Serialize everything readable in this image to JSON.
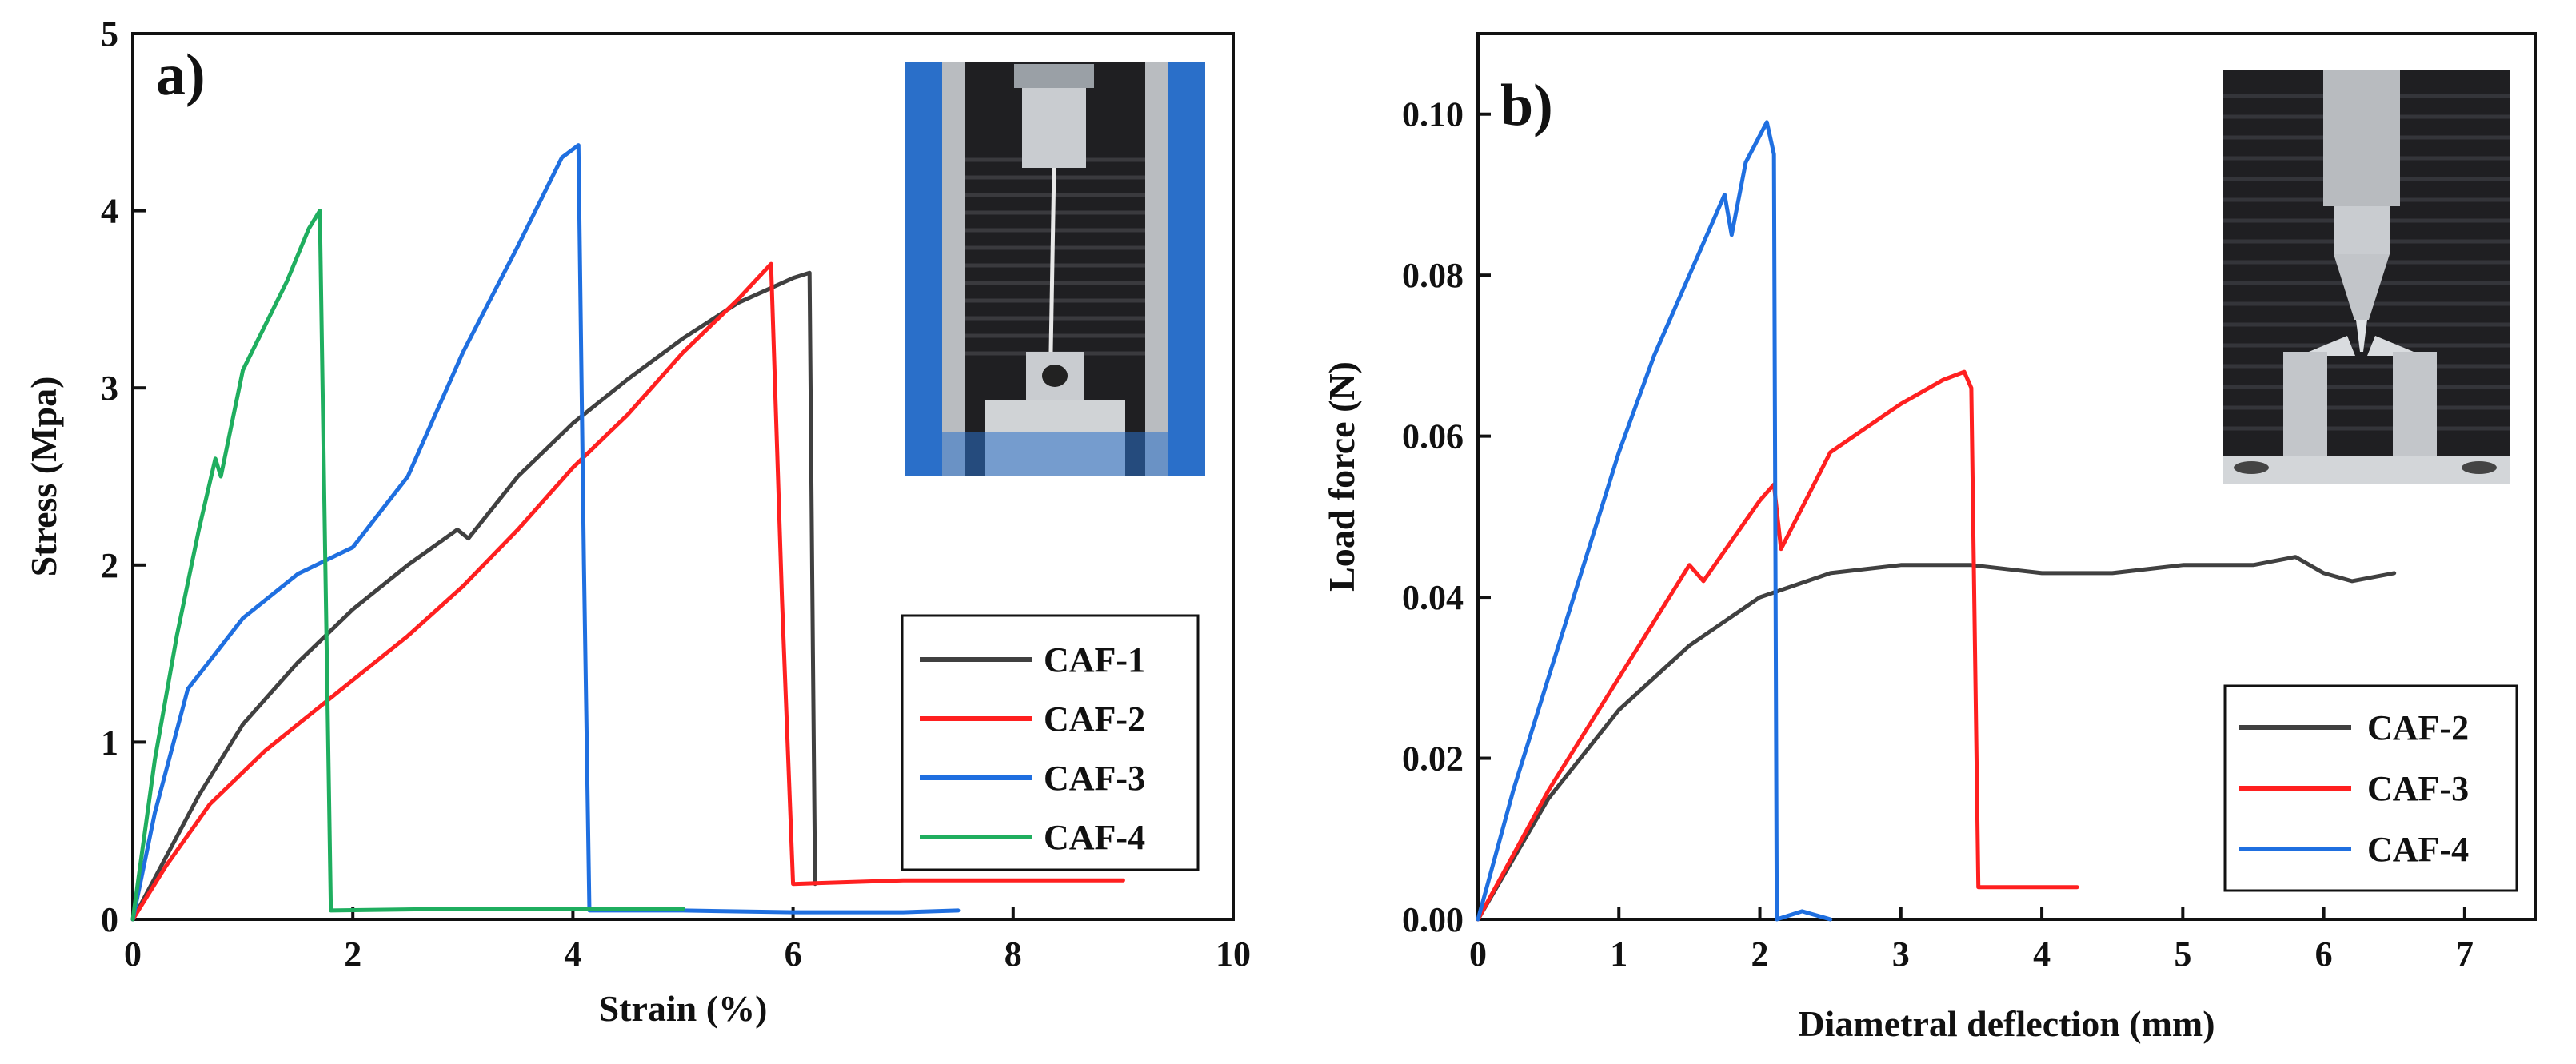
{
  "chart_data": [
    {
      "type": "line",
      "panel_label": "a)",
      "xlabel": "Strain (%)",
      "ylabel": "Stress (Mpa)",
      "xlim": [
        0,
        10
      ],
      "ylim": [
        0,
        5
      ],
      "xticks": [
        "0",
        "2",
        "4",
        "6",
        "8",
        "10"
      ],
      "yticks": [
        "0",
        "1",
        "2",
        "3",
        "4",
        "5"
      ],
      "legend_position": "lower-right",
      "inset": "photo of tensile test specimen clamped in grips",
      "series": [
        {
          "name": "CAF-1",
          "color": "#404040",
          "x": [
            0,
            0.3,
            0.6,
            1.0,
            1.5,
            2.0,
            2.5,
            2.95,
            3.05,
            3.5,
            4.0,
            4.5,
            5.0,
            5.5,
            6.0,
            6.15,
            6.18,
            6.2
          ],
          "y": [
            0,
            0.35,
            0.7,
            1.1,
            1.45,
            1.75,
            2.0,
            2.2,
            2.15,
            2.5,
            2.8,
            3.05,
            3.28,
            3.48,
            3.62,
            3.65,
            1.5,
            0.2
          ]
        },
        {
          "name": "CAF-2",
          "color": "#ff2020",
          "x": [
            0,
            0.3,
            0.7,
            1.2,
            1.5,
            2.0,
            2.5,
            3.0,
            3.5,
            4.0,
            4.5,
            5.0,
            5.5,
            5.8,
            5.9,
            6.0,
            7.0,
            8.0,
            9.0
          ],
          "y": [
            0,
            0.3,
            0.65,
            0.95,
            1.1,
            1.35,
            1.6,
            1.88,
            2.2,
            2.55,
            2.85,
            3.2,
            3.5,
            3.7,
            1.8,
            0.2,
            0.22,
            0.22,
            0.22
          ]
        },
        {
          "name": "CAF-3",
          "color": "#1f6fe0",
          "x": [
            0,
            0.2,
            0.5,
            1.0,
            1.5,
            2.0,
            2.5,
            3.0,
            3.5,
            3.9,
            4.05,
            4.1,
            4.15,
            5.0,
            6.0,
            7.0,
            7.5
          ],
          "y": [
            0,
            0.6,
            1.3,
            1.7,
            1.95,
            2.1,
            2.5,
            3.2,
            3.8,
            4.3,
            4.37,
            2.0,
            0.05,
            0.05,
            0.04,
            0.04,
            0.05
          ]
        },
        {
          "name": "CAF-4",
          "color": "#1fae5f",
          "x": [
            0,
            0.2,
            0.4,
            0.6,
            0.75,
            0.8,
            1.0,
            1.2,
            1.4,
            1.6,
            1.7,
            1.75,
            1.8,
            3.0,
            4.0,
            5.0
          ],
          "y": [
            0,
            0.9,
            1.6,
            2.2,
            2.6,
            2.5,
            3.1,
            3.35,
            3.6,
            3.9,
            4.0,
            2.0,
            0.05,
            0.06,
            0.06,
            0.06
          ]
        }
      ]
    },
    {
      "type": "line",
      "panel_label": "b)",
      "xlabel": "Diametral deflection (mm)",
      "ylabel": "Load force (N)",
      "xlim": [
        0,
        7.5
      ],
      "ylim": [
        0,
        0.11
      ],
      "xticks": [
        "0",
        "1",
        "2",
        "3",
        "4",
        "5",
        "6",
        "7"
      ],
      "yticks": [
        "0.00",
        "0.02",
        "0.04",
        "0.06",
        "0.08",
        "0.10"
      ],
      "legend_position": "lower-right",
      "inset": "photo of diametral compression test between two platens",
      "series": [
        {
          "name": "CAF-2",
          "color": "#404040",
          "x": [
            0,
            0.5,
            1.0,
            1.5,
            2.0,
            2.5,
            3.0,
            3.5,
            4.0,
            4.5,
            5.0,
            5.5,
            5.8,
            6.0,
            6.2,
            6.5
          ],
          "y": [
            0,
            0.015,
            0.026,
            0.034,
            0.04,
            0.043,
            0.044,
            0.044,
            0.043,
            0.043,
            0.044,
            0.044,
            0.045,
            0.043,
            0.042,
            0.043
          ]
        },
        {
          "name": "CAF-3",
          "color": "#ff2020",
          "x": [
            0,
            0.5,
            1.0,
            1.5,
            1.6,
            2.0,
            2.1,
            2.15,
            2.5,
            3.0,
            3.3,
            3.45,
            3.5,
            3.55,
            4.0,
            4.25
          ],
          "y": [
            0,
            0.016,
            0.03,
            0.044,
            0.042,
            0.052,
            0.054,
            0.046,
            0.058,
            0.064,
            0.067,
            0.068,
            0.066,
            0.004,
            0.004,
            0.004
          ]
        },
        {
          "name": "CAF-4",
          "color": "#1f6fe0",
          "x": [
            0,
            0.25,
            0.5,
            0.75,
            1.0,
            1.25,
            1.5,
            1.75,
            1.8,
            1.9,
            2.05,
            2.1,
            2.12,
            2.3,
            2.5
          ],
          "y": [
            0,
            0.016,
            0.03,
            0.044,
            0.058,
            0.07,
            0.08,
            0.09,
            0.085,
            0.094,
            0.099,
            0.095,
            0.0,
            0.001,
            0.0
          ]
        }
      ]
    }
  ]
}
